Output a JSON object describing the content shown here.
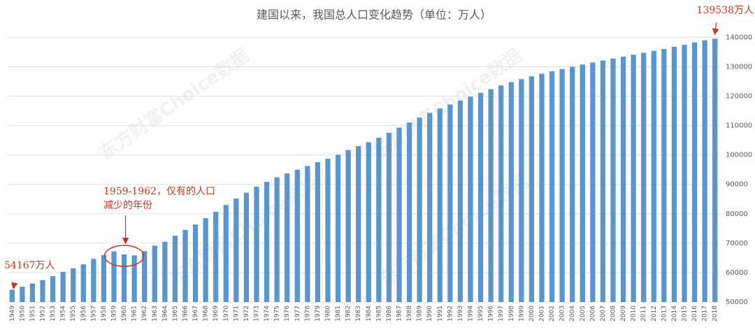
{
  "chart_data": {
    "type": "bar",
    "title": "建国以来，我国总人口变化趋势（单位：万人）",
    "categories": [
      "1949",
      "1950",
      "1951",
      "1952",
      "1953",
      "1954",
      "1955",
      "1956",
      "1957",
      "1958",
      "1959",
      "1960",
      "1961",
      "1962",
      "1963",
      "1964",
      "1965",
      "1966",
      "1967",
      "1968",
      "1969",
      "1970",
      "1971",
      "1972",
      "1973",
      "1974",
      "1975",
      "1976",
      "1977",
      "1978",
      "1979",
      "1980",
      "1981",
      "1982",
      "1983",
      "1984",
      "1985",
      "1986",
      "1987",
      "1988",
      "1989",
      "1990",
      "1991",
      "1992",
      "1993",
      "1994",
      "1995",
      "1996",
      "1997",
      "1998",
      "1999",
      "2000",
      "2001",
      "2002",
      "2003",
      "2004",
      "2005",
      "2006",
      "2007",
      "2008",
      "2009",
      "2010",
      "2011",
      "2012",
      "2013",
      "2014",
      "2015",
      "2016",
      "2017",
      "2018"
    ],
    "values": [
      54167,
      55196,
      56300,
      57482,
      58796,
      60266,
      61465,
      62828,
      64653,
      65994,
      67207,
      66207,
      65859,
      67295,
      69172,
      70499,
      72538,
      74542,
      76368,
      78534,
      80671,
      82992,
      85229,
      87177,
      89211,
      90859,
      92420,
      93717,
      94974,
      96259,
      97542,
      98705,
      100072,
      101654,
      103008,
      104357,
      105851,
      107507,
      109300,
      111026,
      112704,
      114333,
      115823,
      117171,
      118517,
      119850,
      121121,
      122389,
      123626,
      124761,
      125786,
      126743,
      127627,
      128453,
      129227,
      129988,
      130756,
      131448,
      132129,
      132802,
      133450,
      134091,
      134735,
      135404,
      136072,
      136782,
      137462,
      138271,
      139008,
      139538
    ],
    "color": "#5a96cc",
    "ylim": [
      50000,
      142000
    ],
    "yticks": [
      50000,
      60000,
      70000,
      80000,
      90000,
      100000,
      110000,
      120000,
      130000,
      140000
    ],
    "y_axis_side": "right",
    "grid": true,
    "annotations": {
      "first": "54167万人",
      "last": "139538万人",
      "decline": [
        "1959-1962，仅有的人口",
        "减少的年份"
      ]
    },
    "annotation_color": "#c0392b",
    "watermark": "东方财富Choice数据"
  }
}
